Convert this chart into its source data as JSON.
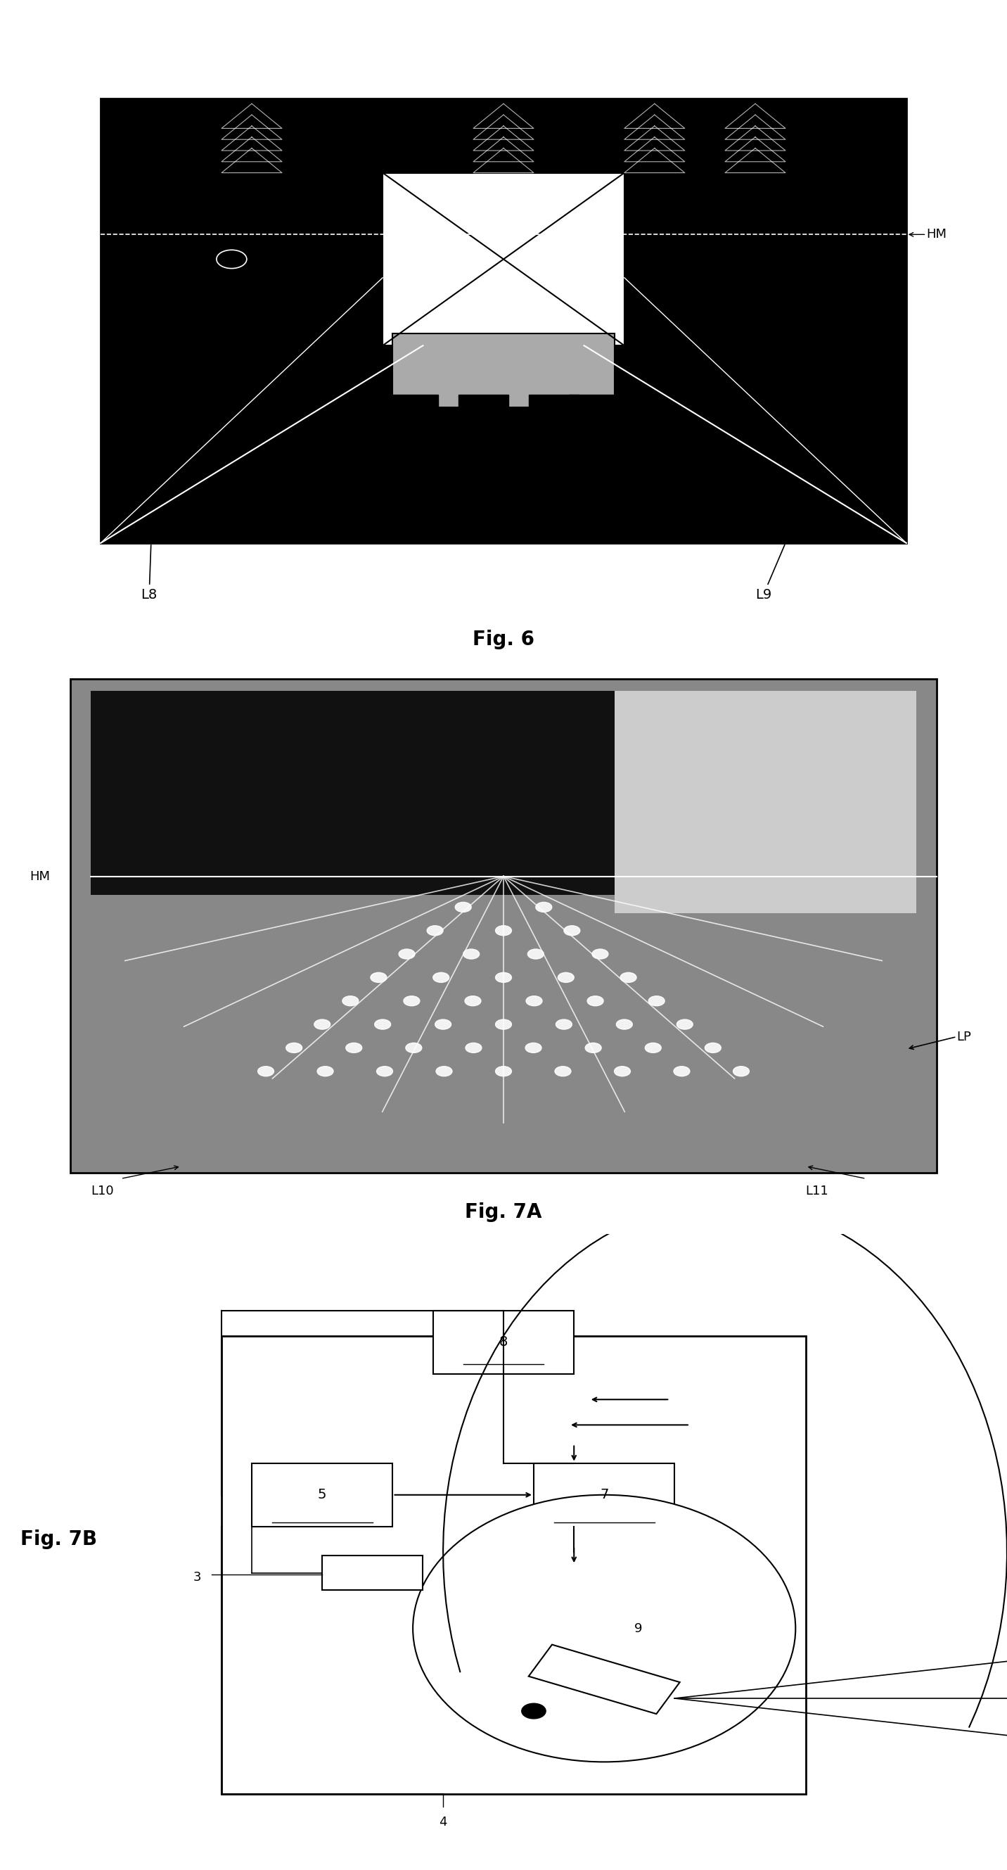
{
  "fig_width": 14.32,
  "fig_height": 26.58,
  "background_color": "#ffffff",
  "fig6": {
    "title": "Fig. 6",
    "label_HM": "HM",
    "label_L8": "L8",
    "label_L9": "L9"
  },
  "fig7a": {
    "title": "Fig. 7A",
    "label_HM": "HM",
    "label_L10": "L10",
    "label_L11": "L11",
    "label_LP": "LP"
  },
  "fig7b": {
    "title": "Fig. 7B",
    "label_3": "3",
    "label_4": "4",
    "label_5": "5",
    "label_7": "7",
    "label_8": "8",
    "label_9": "9"
  }
}
